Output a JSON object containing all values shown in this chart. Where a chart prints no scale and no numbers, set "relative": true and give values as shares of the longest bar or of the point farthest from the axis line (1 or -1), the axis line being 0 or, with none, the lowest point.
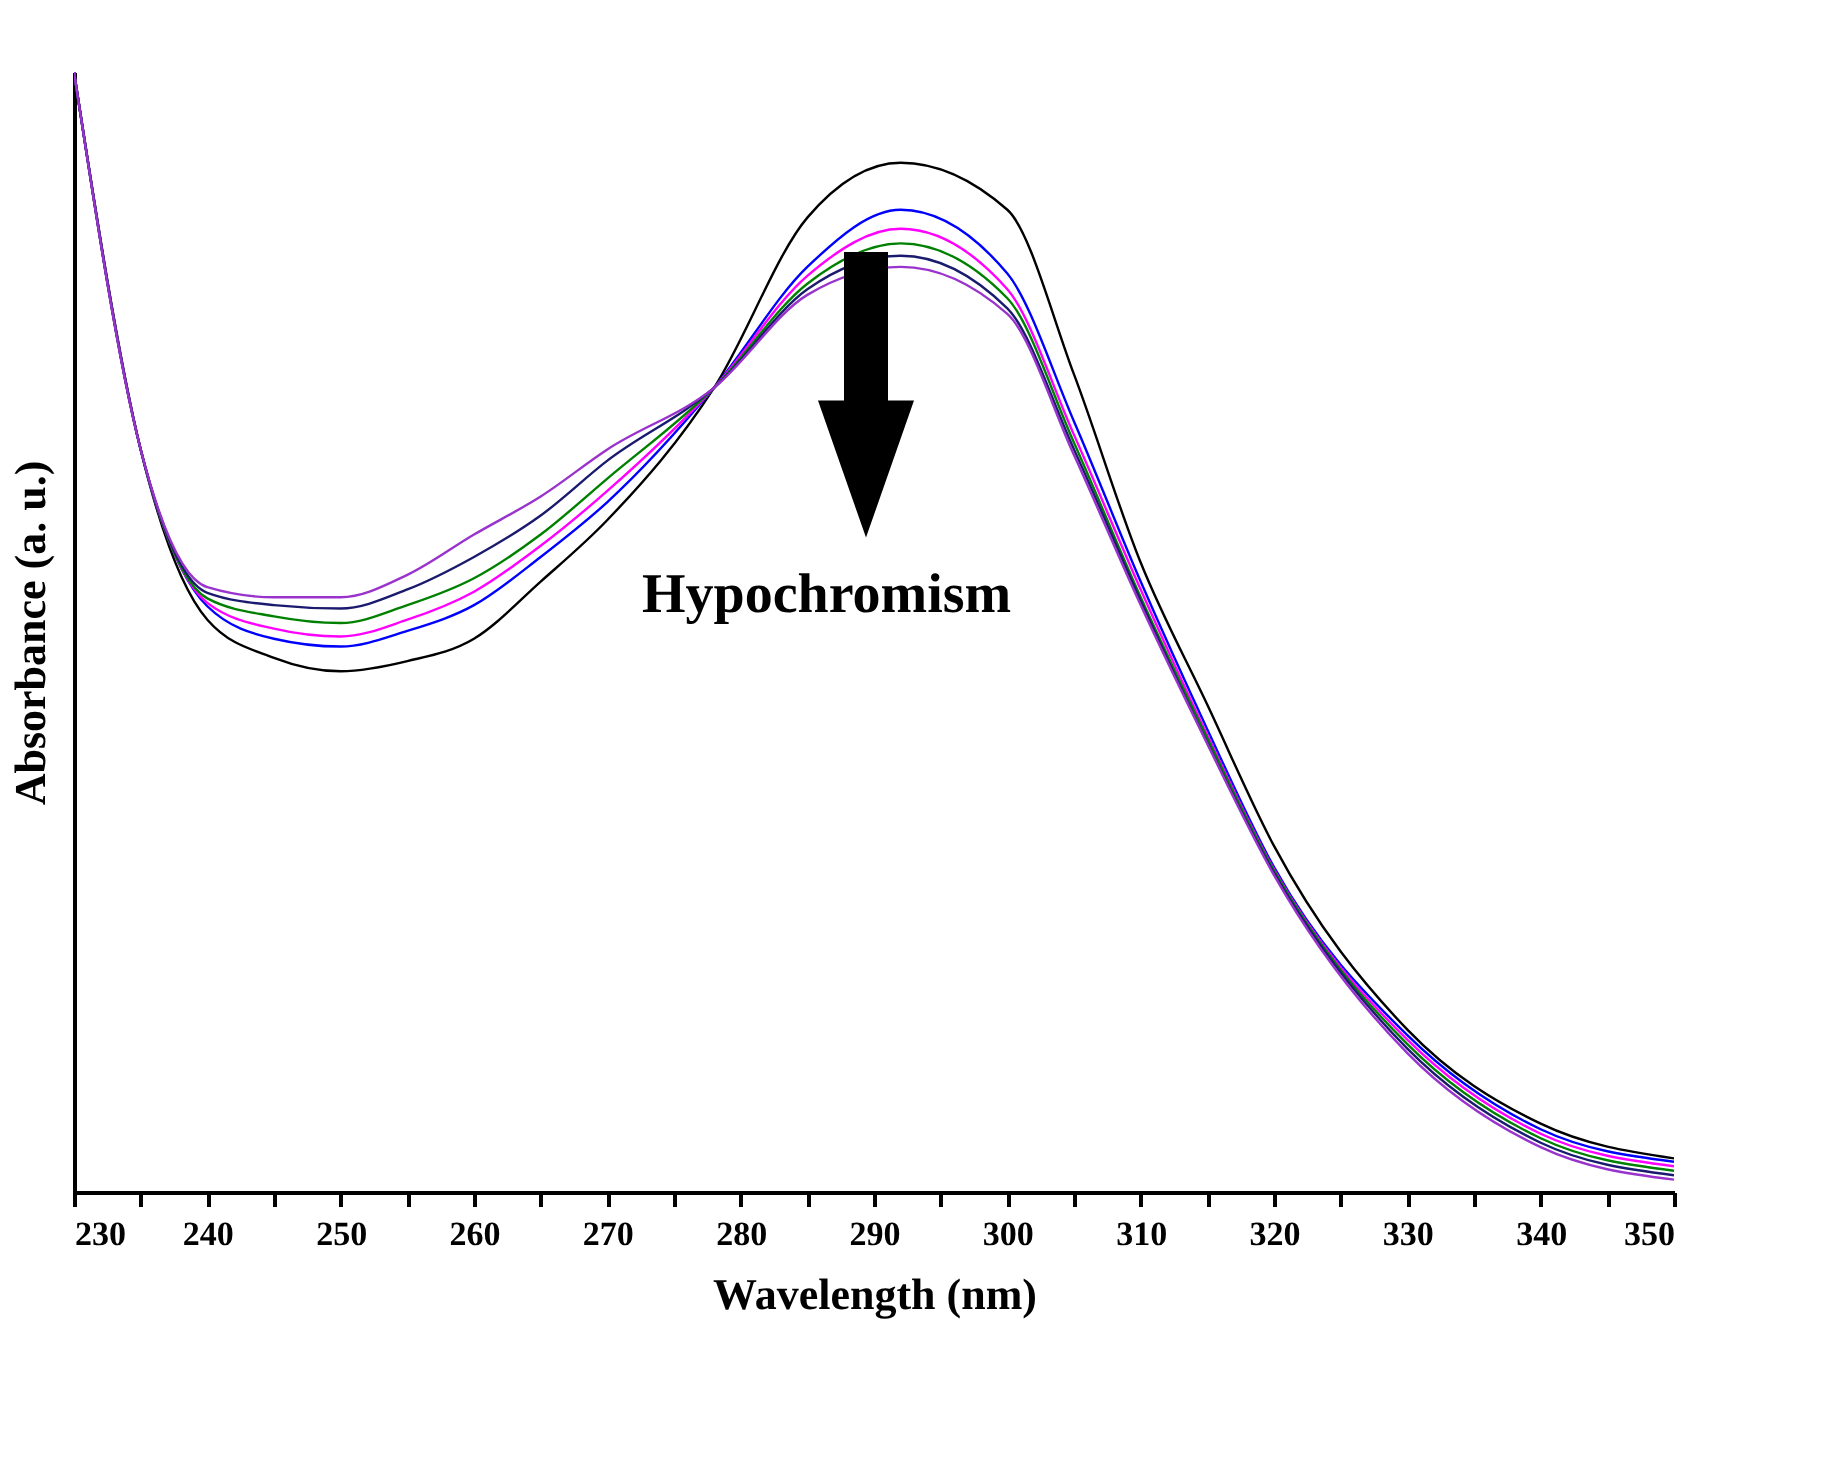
{
  "chart_data": {
    "type": "line",
    "relative": true,
    "xlabel": "Wavelength (nm)",
    "ylabel": "Absorbance (a. u.)",
    "x": [
      230,
      235,
      240,
      245,
      250,
      255,
      260,
      265,
      270,
      278,
      285,
      292,
      300,
      305,
      310,
      315,
      320,
      330,
      340,
      350
    ],
    "xlim": [
      230,
      350
    ],
    "xticks": [
      230,
      {
        "value": 235,
        "label": null
      },
      240,
      {
        "value": 245,
        "label": null
      },
      250,
      {
        "value": 255,
        "label": null
      },
      260,
      {
        "value": 265,
        "label": null
      },
      270,
      {
        "value": 275,
        "label": null
      },
      280,
      {
        "value": 285,
        "label": null
      },
      290,
      {
        "value": 295,
        "label": null
      },
      300,
      {
        "value": 305,
        "label": null
      },
      310,
      {
        "value": 315,
        "label": null
      },
      320,
      {
        "value": 325,
        "label": null
      },
      330,
      {
        "value": 335,
        "label": null
      },
      340,
      {
        "value": 345,
        "label": null
      },
      350
    ],
    "annotations": [
      "Hypochromism"
    ],
    "series": [
      {
        "color": "#000000",
        "values": [
          1.0,
          0.663,
          0.511,
          0.477,
          0.465,
          0.474,
          0.494,
          0.545,
          0.6,
          0.718,
          0.87,
          0.919,
          0.877,
          0.73,
          0.562,
          0.435,
          0.309,
          0.145,
          0.061,
          0.03
        ]
      },
      {
        "color": "#0000ff",
        "values": [
          1.0,
          0.663,
          0.523,
          0.494,
          0.487,
          0.501,
          0.524,
          0.567,
          0.616,
          0.718,
          0.826,
          0.877,
          0.82,
          0.688,
          0.545,
          0.413,
          0.29,
          0.14,
          0.056,
          0.027
        ]
      },
      {
        "color": "#ff00ff",
        "values": [
          1.0,
          0.663,
          0.526,
          0.503,
          0.496,
          0.511,
          0.536,
          0.577,
          0.626,
          0.718,
          0.818,
          0.86,
          0.806,
          0.676,
          0.538,
          0.408,
          0.288,
          0.136,
          0.052,
          0.023
        ]
      },
      {
        "color": "#008000",
        "values": [
          1.0,
          0.663,
          0.53,
          0.514,
          0.508,
          0.524,
          0.548,
          0.587,
          0.637,
          0.718,
          0.811,
          0.847,
          0.798,
          0.669,
          0.531,
          0.405,
          0.287,
          0.132,
          0.048,
          0.019
        ]
      },
      {
        "color": "#1a1a6e",
        "values": [
          1.0,
          0.663,
          0.535,
          0.524,
          0.521,
          0.538,
          0.567,
          0.604,
          0.653,
          0.718,
          0.806,
          0.836,
          0.789,
          0.663,
          0.528,
          0.401,
          0.285,
          0.128,
          0.044,
          0.015
        ]
      },
      {
        "color": "#9933cc",
        "values": [
          1.0,
          0.663,
          0.54,
          0.531,
          0.531,
          0.551,
          0.587,
          0.621,
          0.663,
          0.718,
          0.801,
          0.826,
          0.784,
          0.658,
          0.524,
          0.4,
          0.283,
          0.124,
          0.04,
          0.011
        ]
      }
    ]
  }
}
